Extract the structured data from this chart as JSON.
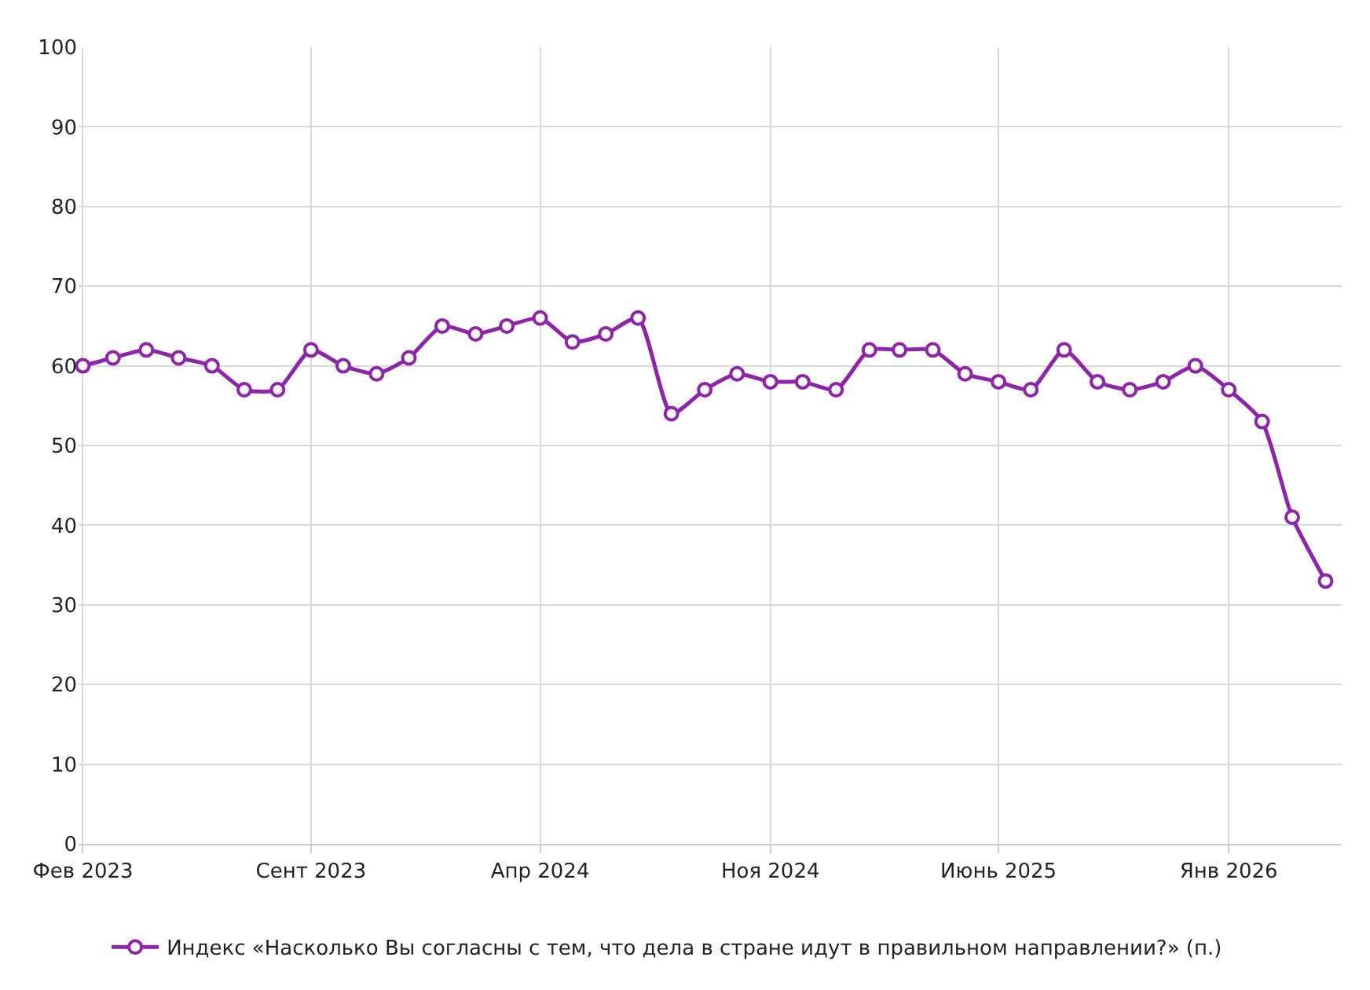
{
  "chart_data": {
    "type": "line",
    "x": [
      "2023-02",
      "2023-03",
      "2023-04",
      "2023-05",
      "2023-06",
      "2023-07",
      "2023-08",
      "2023-09",
      "2023-10",
      "2023-11",
      "2023-12",
      "2024-01",
      "2024-02",
      "2024-03",
      "2024-04",
      "2024-05",
      "2024-06",
      "2024-07",
      "2024-08",
      "2024-09",
      "2024-10",
      "2024-11",
      "2024-12",
      "2025-01",
      "2025-02",
      "2025-03",
      "2025-04",
      "2025-05",
      "2025-06",
      "2025-07",
      "2025-08",
      "2025-09",
      "2025-10",
      "2025-11",
      "2025-12",
      "2026-01",
      "2026-02",
      "2026-03",
      "2026-04"
    ],
    "series": [
      {
        "name": "Индекс «Насколько Вы согласны с тем, что дела в стране идут в правильном направлении?» (п.)",
        "color": "#8e24aa",
        "values": [
          60,
          61,
          62,
          61,
          60,
          57,
          57,
          62,
          60,
          59,
          61,
          65,
          64,
          65,
          66,
          63,
          64,
          66,
          54,
          57,
          59,
          58,
          58,
          57,
          62,
          62,
          62,
          59,
          58,
          57,
          62,
          58,
          57,
          58,
          60,
          57,
          53,
          41,
          33
        ]
      }
    ],
    "xlim": [
      "2023-01-28",
      "2026-04-16"
    ],
    "xticks": [
      {
        "value": "2023-02",
        "label": "Фев 2023"
      },
      {
        "value": "2023-09",
        "label": "Сент 2023"
      },
      {
        "value": "2024-04",
        "label": "Апр 2024"
      },
      {
        "value": "2024-11",
        "label": "Ноя 2024"
      },
      {
        "value": "2025-06",
        "label": "Июнь 2025"
      },
      {
        "value": "2026-01",
        "label": "Янв 2026"
      }
    ],
    "ylim": [
      0,
      100
    ],
    "yticks": [
      0,
      10,
      20,
      30,
      40,
      50,
      60,
      70,
      80,
      90,
      100
    ],
    "grid": true,
    "legend": "bottom",
    "marker": "circle",
    "line_style": "solid"
  }
}
